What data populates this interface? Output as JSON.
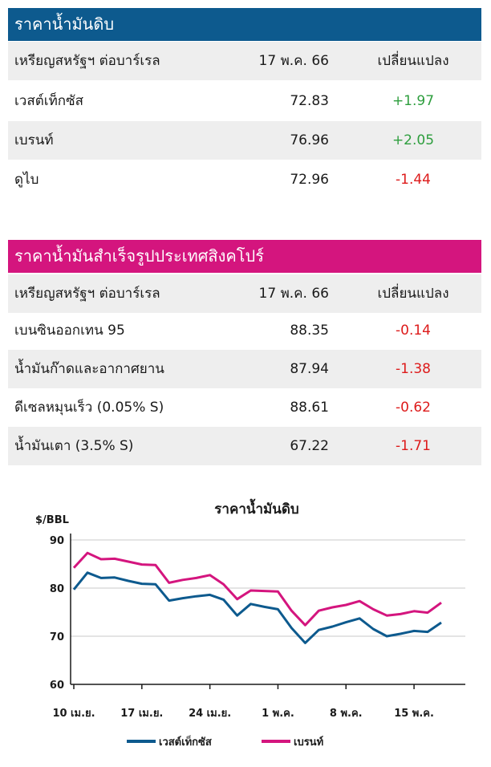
{
  "crude": {
    "title": "ราคาน้ำมันดิบ",
    "header": {
      "label": "เหรียญสหรัฐฯ ต่อบาร์เรล",
      "date": "17 พ.ค. 66",
      "change": "เปลี่ยนแปลง"
    },
    "rows": [
      {
        "name": "เวสต์เท็กซัส",
        "price": "72.83",
        "change": "+1.97"
      },
      {
        "name": "เบรนท์",
        "price": "76.96",
        "change": "+2.05"
      },
      {
        "name": "ดูไบ",
        "price": "72.96",
        "change": "-1.44"
      }
    ]
  },
  "singapore": {
    "title": "ราคาน้ำมันสำเร็จรูปประเทศสิงคโปร์",
    "header": {
      "label": "เหรียญสหรัฐฯ ต่อบาร์เรล",
      "date": "17 พ.ค. 66",
      "change": "เปลี่ยนแปลง"
    },
    "rows": [
      {
        "name": "เบนซินออกเทน 95",
        "price": "88.35",
        "change": "-0.14"
      },
      {
        "name": "น้ำมันก๊าดและอากาศยาน",
        "price": "87.94",
        "change": "-1.38"
      },
      {
        "name": "ดีเซลหมุนเร็ว (0.05% S)",
        "price": "88.61",
        "change": "-0.62"
      },
      {
        "name": "น้ำมันเตา (3.5% S)",
        "price": "67.22",
        "change": "-1.71"
      }
    ]
  },
  "colors": {
    "crude_header": "#0d5a8e",
    "singapore_header": "#d4157e",
    "positive": "#2e9e3e",
    "negative": "#dd1b1b"
  },
  "chart_data": {
    "type": "line",
    "title": "ราคาน้ำมันดิบ",
    "ylabel": "$/BBL",
    "xlabel": "",
    "ylim": [
      60,
      90
    ],
    "yticks": [
      60,
      70,
      80,
      90
    ],
    "xlim": [
      0,
      27
    ],
    "xticks": [
      {
        "label": "10 เม.ย.",
        "x": 0
      },
      {
        "label": "17 เม.ย.",
        "x": 5
      },
      {
        "label": "24 เม.ย.",
        "x": 10
      },
      {
        "label": "1 พ.ค.",
        "x": 15
      },
      {
        "label": "8 พ.ค.",
        "x": 20
      },
      {
        "label": "15 พ.ค.",
        "x": 25
      }
    ],
    "legend_position": "bottom",
    "grid": "horizontal",
    "series": [
      {
        "name": "เวสต์เท็กซัส",
        "color": "#0d5a8e",
        "x": [
          0,
          1,
          2,
          3,
          4,
          5,
          6,
          7,
          8,
          9,
          10,
          11,
          12,
          13,
          14,
          15,
          16,
          17,
          18,
          19,
          20,
          21,
          22,
          23,
          24,
          25,
          26,
          27
        ],
        "y": [
          79.7,
          83.2,
          82.1,
          82.2,
          81.5,
          80.9,
          80.8,
          77.4,
          77.9,
          78.3,
          78.6,
          77.6,
          74.3,
          76.7,
          76.1,
          75.6,
          71.7,
          68.6,
          71.3,
          72.0,
          72.9,
          73.7,
          71.5,
          70.0,
          70.5,
          71.1,
          70.9,
          72.83
        ]
      },
      {
        "name": "เบรนท์",
        "color": "#d4157e",
        "x": [
          0,
          1,
          2,
          3,
          4,
          5,
          6,
          7,
          8,
          9,
          10,
          11,
          12,
          13,
          14,
          15,
          16,
          17,
          18,
          19,
          20,
          21,
          22,
          23,
          24,
          25,
          26,
          27
        ],
        "y": [
          84.2,
          87.3,
          86.0,
          86.1,
          85.5,
          84.9,
          84.8,
          81.1,
          81.7,
          82.1,
          82.7,
          80.8,
          77.7,
          79.5,
          79.4,
          79.3,
          75.3,
          72.3,
          75.3,
          76.0,
          76.5,
          77.3,
          75.6,
          74.3,
          74.6,
          75.2,
          74.9,
          76.96
        ]
      }
    ]
  }
}
